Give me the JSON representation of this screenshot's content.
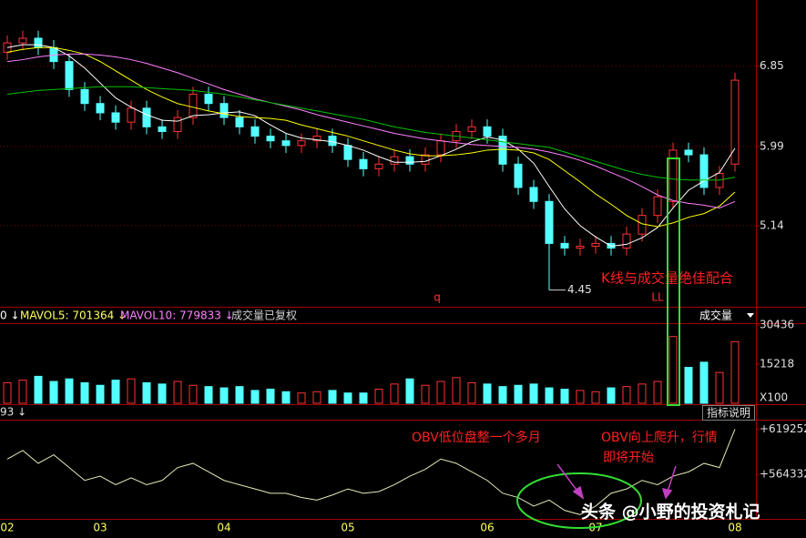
{
  "chart_data": [
    {
      "type": "candlestick",
      "ylim": [
        4.29,
        7.56
      ],
      "yticks": [
        6.85,
        5.99,
        5.14
      ],
      "grid": true,
      "up_color": "#ff3232",
      "down_color": "#54ffff",
      "open": [
        7.0,
        7.1,
        7.15,
        7.05,
        6.9,
        6.6,
        6.45,
        6.35,
        6.25,
        6.4,
        6.2,
        6.15,
        6.3,
        6.55,
        6.45,
        6.3,
        6.2,
        6.1,
        6.05,
        6.0,
        6.05,
        6.1,
        6.0,
        5.85,
        5.75,
        5.8,
        5.88,
        5.8,
        5.9,
        6.05,
        6.15,
        6.2,
        6.1,
        5.8,
        5.55,
        5.4,
        4.95,
        4.9,
        4.92,
        4.95,
        4.9,
        5.05,
        5.25,
        5.4,
        5.95,
        5.9,
        5.55,
        5.8
      ],
      "high": [
        7.18,
        7.23,
        7.23,
        7.13,
        6.98,
        6.68,
        6.53,
        6.43,
        6.48,
        6.48,
        6.28,
        6.38,
        6.63,
        6.63,
        6.53,
        6.38,
        6.28,
        6.18,
        6.13,
        6.13,
        6.18,
        6.18,
        6.08,
        5.93,
        5.88,
        5.96,
        5.96,
        5.98,
        6.13,
        6.23,
        6.28,
        6.28,
        6.18,
        5.88,
        5.63,
        5.48,
        5.03,
        5.0,
        5.03,
        5.03,
        5.13,
        5.33,
        5.53,
        6.03,
        6.03,
        5.98,
        5.78,
        6.78
      ],
      "low": [
        6.92,
        7.02,
        6.97,
        6.82,
        6.52,
        6.37,
        6.27,
        6.17,
        6.17,
        6.12,
        6.07,
        6.07,
        6.22,
        6.37,
        6.22,
        6.12,
        6.02,
        5.97,
        5.92,
        5.92,
        5.97,
        5.92,
        5.77,
        5.67,
        5.67,
        5.72,
        5.72,
        5.72,
        5.82,
        5.97,
        6.07,
        6.02,
        5.72,
        5.47,
        5.32,
        4.45,
        4.82,
        4.82,
        4.84,
        4.82,
        4.82,
        4.97,
        5.17,
        5.32,
        5.82,
        5.47,
        5.47,
        5.72
      ],
      "close": [
        7.1,
        7.15,
        7.05,
        6.9,
        6.6,
        6.45,
        6.35,
        6.25,
        6.4,
        6.2,
        6.15,
        6.3,
        6.55,
        6.45,
        6.3,
        6.2,
        6.1,
        6.05,
        6.0,
        6.05,
        6.1,
        6.0,
        5.85,
        5.75,
        5.8,
        5.88,
        5.8,
        5.9,
        6.05,
        6.15,
        6.2,
        6.1,
        5.8,
        5.55,
        5.4,
        4.95,
        4.9,
        4.92,
        4.95,
        4.9,
        5.05,
        5.25,
        5.45,
        5.95,
        5.9,
        5.55,
        5.7,
        6.7
      ],
      "series": [
        {
          "color": "#ffffff",
          "values": [
            7.05,
            7.08,
            7.08,
            7.05,
            6.96,
            6.83,
            6.67,
            6.51,
            6.41,
            6.33,
            6.27,
            6.26,
            6.32,
            6.33,
            6.35,
            6.36,
            6.32,
            6.22,
            6.13,
            6.08,
            6.06,
            6.04,
            6.0,
            5.95,
            5.88,
            5.82,
            5.82,
            5.83,
            5.89,
            5.96,
            6.04,
            6.09,
            6.06,
            5.96,
            5.81,
            5.56,
            5.32,
            5.14,
            5.02,
            4.92,
            4.94,
            5.01,
            5.12,
            5.33,
            5.52,
            5.62,
            5.71,
            5.97
          ]
        },
        {
          "color": "#ffff00",
          "values": [
            7.0,
            7.03,
            7.05,
            7.05,
            7.02,
            6.98,
            6.9,
            6.8,
            6.7,
            6.6,
            6.52,
            6.45,
            6.41,
            6.37,
            6.34,
            6.31,
            6.3,
            6.29,
            6.27,
            6.22,
            6.18,
            6.14,
            6.1,
            6.05,
            6.0,
            5.95,
            5.91,
            5.89,
            5.89,
            5.9,
            5.92,
            5.95,
            5.96,
            5.95,
            5.92,
            5.85,
            5.73,
            5.61,
            5.48,
            5.37,
            5.25,
            5.16,
            5.13,
            5.17,
            5.23,
            5.27,
            5.35,
            5.5
          ]
        },
        {
          "color": "#ff80ff",
          "values": [
            6.9,
            6.92,
            6.95,
            6.97,
            6.98,
            6.98,
            6.97,
            6.95,
            6.92,
            6.88,
            6.83,
            6.78,
            6.72,
            6.66,
            6.6,
            6.55,
            6.5,
            6.46,
            6.42,
            6.38,
            6.33,
            6.29,
            6.25,
            6.21,
            6.17,
            6.13,
            6.1,
            6.07,
            6.05,
            6.03,
            6.01,
            6.0,
            5.99,
            5.98,
            5.96,
            5.93,
            5.89,
            5.84,
            5.78,
            5.71,
            5.64,
            5.56,
            5.47,
            5.41,
            5.38,
            5.36,
            5.33,
            5.4
          ]
        },
        {
          "color": "#00c000",
          "values": [
            6.55,
            6.57,
            6.59,
            6.6,
            6.61,
            6.62,
            6.63,
            6.63,
            6.63,
            6.62,
            6.61,
            6.6,
            6.59,
            6.57,
            6.55,
            6.52,
            6.49,
            6.46,
            6.43,
            6.4,
            6.37,
            6.34,
            6.31,
            6.28,
            6.24,
            6.2,
            6.17,
            6.14,
            6.12,
            6.1,
            6.08,
            6.06,
            6.04,
            6.02,
            6.0,
            5.98,
            5.93,
            5.88,
            5.83,
            5.78,
            5.73,
            5.69,
            5.66,
            5.64,
            5.63,
            5.63,
            5.63,
            5.66
          ]
        }
      ],
      "annotations": [
        "q",
        "LL",
        "K线与成交量绝佳配合"
      ]
    },
    {
      "type": "bar",
      "title": "成交量",
      "indicators": [
        "0 ↓",
        "MAVOL5: 701364 ↓",
        "MAVOL10: 779833 ↓",
        "成交量已复权"
      ],
      "unit": "X100",
      "ylim": [
        0,
        31200
      ],
      "yticks": [
        30436,
        15218
      ],
      "values": [
        8000,
        9000,
        10500,
        8500,
        9500,
        8000,
        7000,
        9000,
        9500,
        8000,
        7500,
        8500,
        7000,
        6500,
        6000,
        6500,
        5000,
        5500,
        4500,
        4000,
        4500,
        5000,
        4000,
        4000,
        5500,
        7500,
        9500,
        7000,
        8500,
        10000,
        8000,
        7500,
        6500,
        7000,
        7500,
        6000,
        5500,
        5000,
        4500,
        6000,
        6500,
        7500,
        8500,
        26000,
        14000,
        16000,
        12000,
        24000
      ]
    },
    {
      "type": "line",
      "header": "93 ↓",
      "button": "指标说明",
      "color": "#e8e8b8",
      "categories": [
        "02",
        null,
        null,
        null,
        null,
        null,
        "03",
        null,
        null,
        null,
        null,
        null,
        null,
        null,
        "04",
        null,
        null,
        null,
        null,
        null,
        null,
        null,
        "05",
        null,
        null,
        null,
        null,
        null,
        null,
        null,
        null,
        "06",
        null,
        null,
        null,
        null,
        null,
        null,
        "07",
        null,
        null,
        null,
        null,
        null,
        null,
        null,
        null,
        "08"
      ],
      "ylim": [
        510500,
        629600
      ],
      "yticks": [
        {
          "value": 619252,
          "label": "+619252"
        },
        {
          "value": 564332,
          "label": "+564332"
        }
      ],
      "values": [
        583000,
        593350,
        577800,
        588170,
        572630,
        557100,
        562270,
        551900,
        560200,
        551900,
        557100,
        572630,
        577800,
        567440,
        557100,
        551900,
        546730,
        541550,
        541550,
        536370,
        533300,
        539480,
        546730,
        541550,
        543620,
        551900,
        562270,
        570560,
        583000,
        577800,
        567440,
        557100,
        541550,
        536370,
        526000,
        533300,
        520830,
        515650,
        526000,
        541550,
        546730,
        557100,
        551900,
        562270,
        567440,
        577800,
        572630,
        619252
      ],
      "annotations": [
        "OBV低位盘整一个多月",
        "OBV向上爬升，行情",
        "即将开始"
      ]
    }
  ],
  "watermark": "头条 @小野的投资札记"
}
